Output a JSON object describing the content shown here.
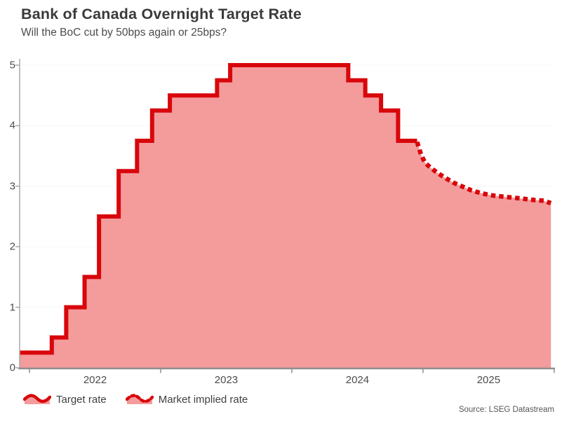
{
  "header": {
    "title": "Bank of Canada Overnight Target Rate",
    "subtitle": "Will the BoC cut by 50bps again or 25bps?"
  },
  "footer": {
    "source": "Source: LSEG Datastream"
  },
  "legend": {
    "items": [
      {
        "label": "Target rate",
        "style": "solid"
      },
      {
        "label": "Market implied rate",
        "style": "dotted"
      }
    ]
  },
  "colors": {
    "line": "#d8070b",
    "fill": "#f49b9c",
    "grid": "#e2e2e2",
    "axis": "#8f8f8f",
    "axis_left": "#a8a8a8",
    "tick_text": "#4c4c4c"
  },
  "chart_data": {
    "type": "line",
    "subtype": "step-area with dotted forward curve",
    "title": "Bank of Canada Overnight Target Rate",
    "subtitle": "Will the BoC cut by 50bps again or 25bps?",
    "xlabel": "",
    "ylabel": "",
    "xlim": [
      2021.925,
      2025.99
    ],
    "ylim": [
      0,
      5.2
    ],
    "grid": "horizontal-dotted",
    "legend_position": "bottom-left",
    "x_ticks": {
      "labels": [
        "2022",
        "2023",
        "2024",
        "2025"
      ],
      "label_positions": [
        2022.5,
        2023.5,
        2024.5,
        2025.5
      ],
      "mark_positions": [
        2022,
        2023,
        2024,
        2025,
        2026
      ]
    },
    "y_ticks": {
      "labels": [
        "0",
        "1",
        "2",
        "3",
        "4",
        "5"
      ],
      "values": [
        0,
        1,
        2,
        3,
        4,
        5
      ]
    },
    "series": [
      {
        "name": "Target rate",
        "draw": "step",
        "line_style": "solid",
        "color": "#d8070b",
        "area_fill": "#f49b9c",
        "points": [
          [
            2021.925,
            0.25
          ],
          [
            2022.17,
            0.5
          ],
          [
            2022.28,
            1.0
          ],
          [
            2022.42,
            1.5
          ],
          [
            2022.53,
            2.5
          ],
          [
            2022.68,
            3.25
          ],
          [
            2022.82,
            3.75
          ],
          [
            2022.935,
            4.25
          ],
          [
            2023.07,
            4.5
          ],
          [
            2023.43,
            4.75
          ],
          [
            2023.53,
            5.0
          ],
          [
            2024.43,
            4.75
          ],
          [
            2024.56,
            4.5
          ],
          [
            2024.68,
            4.25
          ],
          [
            2024.81,
            3.75
          ],
          [
            2024.955,
            3.75
          ]
        ]
      },
      {
        "name": "Market implied rate",
        "draw": "line",
        "line_style": "dotted",
        "color": "#d8070b",
        "area_fill": "#f49b9c",
        "points": [
          [
            2024.955,
            3.73
          ],
          [
            2024.985,
            3.52
          ],
          [
            2025.015,
            3.39
          ],
          [
            2025.055,
            3.31
          ],
          [
            2025.11,
            3.22
          ],
          [
            2025.175,
            3.13
          ],
          [
            2025.24,
            3.05
          ],
          [
            2025.305,
            2.99
          ],
          [
            2025.37,
            2.93
          ],
          [
            2025.435,
            2.89
          ],
          [
            2025.515,
            2.85
          ],
          [
            2025.6,
            2.83
          ],
          [
            2025.69,
            2.81
          ],
          [
            2025.775,
            2.79
          ],
          [
            2025.855,
            2.77
          ],
          [
            2025.92,
            2.76
          ],
          [
            2025.975,
            2.72
          ]
        ]
      }
    ]
  }
}
